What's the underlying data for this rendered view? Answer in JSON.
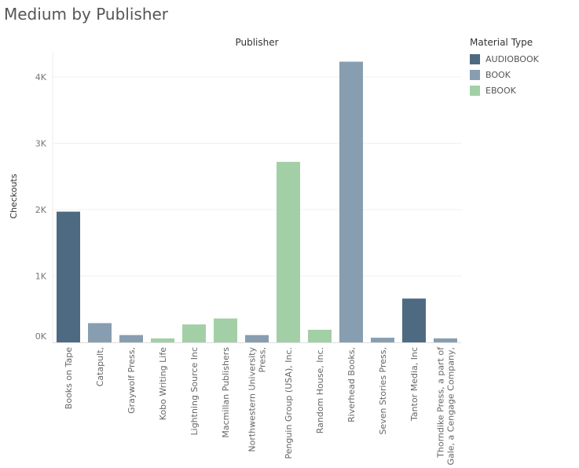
{
  "title": "Medium by Publisher",
  "legend": {
    "title": "Material Type",
    "items": [
      {
        "label": "AUDIOBOOK",
        "color": "#4e6a83"
      },
      {
        "label": "BOOK",
        "color": "#879eb1"
      },
      {
        "label": "EBOOK",
        "color": "#a3cfa6"
      }
    ]
  },
  "chart_data": {
    "type": "bar",
    "column_header": "Publisher",
    "ylabel": "Checkouts",
    "ylim": [
      0,
      4000
    ],
    "yticks": [
      0,
      1000,
      2000,
      3000,
      4000
    ],
    "ytick_labels": [
      "0K",
      "1K",
      "2K",
      "3K",
      "4K"
    ],
    "grid": true,
    "legend_position": "right",
    "categories": [
      [
        "Books on Tape"
      ],
      [
        "Catapult,"
      ],
      [
        "Graywolf Press,"
      ],
      [
        "Kobo Writing Life"
      ],
      [
        "Lightning Source Inc"
      ],
      [
        "Macmillan Publishers"
      ],
      [
        "Northwestern University",
        "Press,"
      ],
      [
        "Penguin Group (USA), Inc."
      ],
      [
        "Random House, Inc."
      ],
      [
        "Riverhead Books,"
      ],
      [
        "Seven Stories Press,"
      ],
      [
        "Tantor Media, Inc"
      ],
      [
        "Thorndike Press, a part of",
        "Gale, a Cengage Company,"
      ]
    ],
    "values": [
      1970,
      290,
      110,
      60,
      270,
      360,
      110,
      2720,
      190,
      4230,
      70,
      660,
      60
    ],
    "material_type": [
      "AUDIOBOOK",
      "BOOK",
      "BOOK",
      "EBOOK",
      "EBOOK",
      "EBOOK",
      "BOOK",
      "EBOOK",
      "EBOOK",
      "BOOK",
      "BOOK",
      "AUDIOBOOK",
      "BOOK"
    ]
  }
}
